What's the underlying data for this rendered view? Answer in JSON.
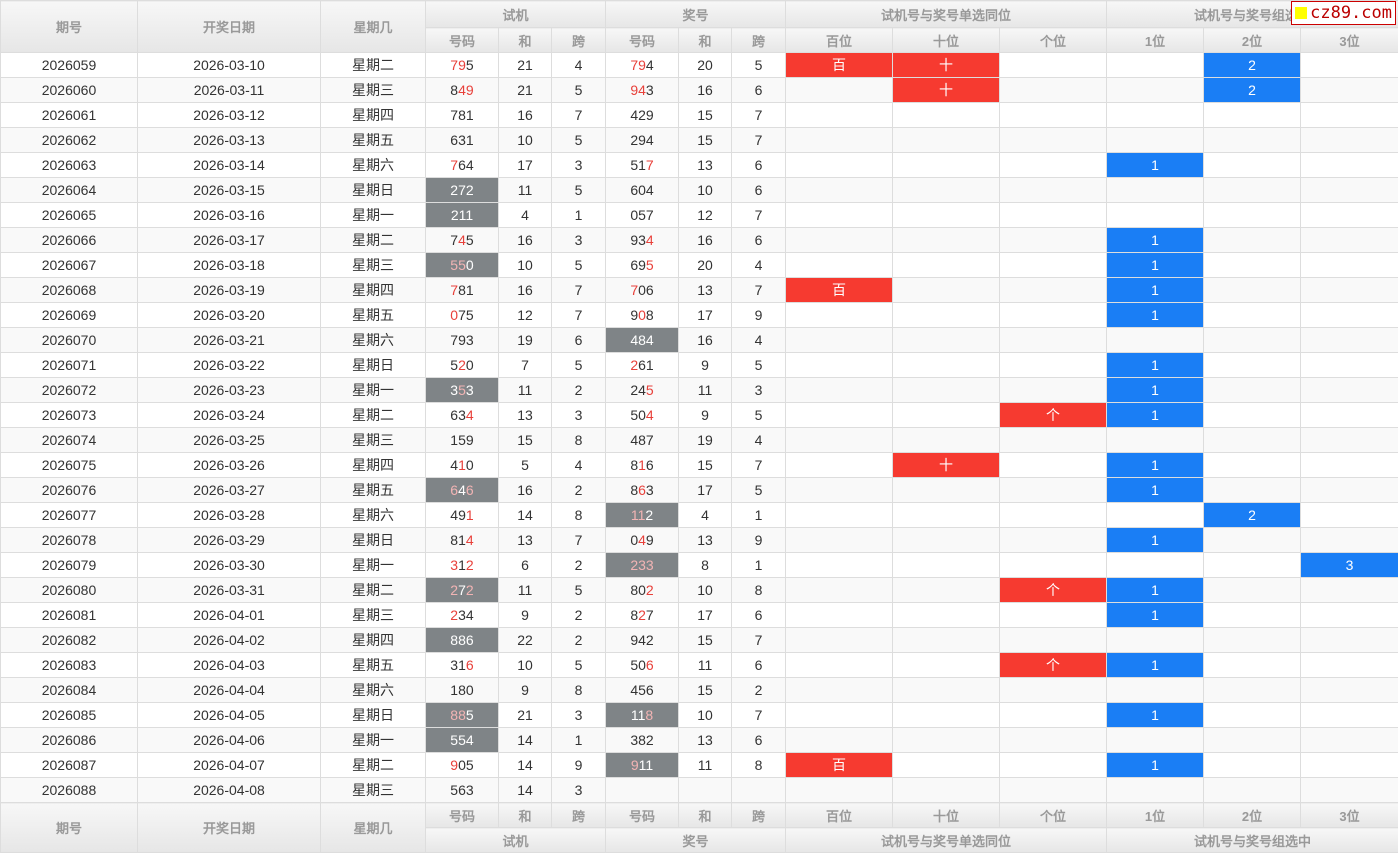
{
  "header": {
    "issue": "期号",
    "date": "开奖日期",
    "weekday": "星期几",
    "trial": "试机",
    "prize": "奖号",
    "single": "试机号与奖号单选同位",
    "group": "试机号与奖号组选中",
    "num": "号码",
    "sum": "和",
    "span": "跨",
    "pos": [
      "百位",
      "十位",
      "个位"
    ],
    "gpos": [
      "1位",
      "2位",
      "3位"
    ]
  },
  "logo": "cz89.com",
  "colors": {
    "red": "#f63a30",
    "blue": "#1a7ef5",
    "gray": "#7f8487"
  },
  "rows": [
    [
      "2026059",
      "2026-03-10",
      "星期二",
      "795",
      "110",
      0,
      "21",
      "4",
      "794",
      "110",
      0,
      "20",
      "5",
      "百",
      "十",
      "",
      "",
      "2",
      ""
    ],
    [
      "2026060",
      "2026-03-11",
      "星期三",
      "849",
      "011",
      0,
      "21",
      "5",
      "943",
      "110",
      0,
      "16",
      "6",
      "",
      "十",
      "",
      "",
      "2",
      ""
    ],
    [
      "2026061",
      "2026-03-12",
      "星期四",
      "781",
      "000",
      0,
      "16",
      "7",
      "429",
      "000",
      0,
      "15",
      "7",
      "",
      "",
      "",
      "",
      "",
      ""
    ],
    [
      "2026062",
      "2026-03-13",
      "星期五",
      "631",
      "000",
      0,
      "10",
      "5",
      "294",
      "000",
      0,
      "15",
      "7",
      "",
      "",
      "",
      "",
      "",
      ""
    ],
    [
      "2026063",
      "2026-03-14",
      "星期六",
      "764",
      "100",
      0,
      "17",
      "3",
      "517",
      "001",
      0,
      "13",
      "6",
      "",
      "",
      "",
      "1",
      "",
      ""
    ],
    [
      "2026064",
      "2026-03-15",
      "星期日",
      "272",
      "000",
      1,
      "11",
      "5",
      "604",
      "000",
      0,
      "10",
      "6",
      "",
      "",
      "",
      "",
      "",
      ""
    ],
    [
      "2026065",
      "2026-03-16",
      "星期一",
      "211",
      "000",
      1,
      "4",
      "1",
      "057",
      "000",
      0,
      "12",
      "7",
      "",
      "",
      "",
      "",
      "",
      ""
    ],
    [
      "2026066",
      "2026-03-17",
      "星期二",
      "745",
      "010",
      0,
      "16",
      "3",
      "934",
      "001",
      0,
      "16",
      "6",
      "",
      "",
      "",
      "1",
      "",
      ""
    ],
    [
      "2026067",
      "2026-03-18",
      "星期三",
      "550",
      "110",
      1,
      "10",
      "5",
      "695",
      "001",
      0,
      "20",
      "4",
      "",
      "",
      "",
      "1",
      "",
      ""
    ],
    [
      "2026068",
      "2026-03-19",
      "星期四",
      "781",
      "100",
      0,
      "16",
      "7",
      "706",
      "100",
      0,
      "13",
      "7",
      "百",
      "",
      "",
      "1",
      "",
      ""
    ],
    [
      "2026069",
      "2026-03-20",
      "星期五",
      "075",
      "100",
      0,
      "12",
      "7",
      "908",
      "010",
      0,
      "17",
      "9",
      "",
      "",
      "",
      "1",
      "",
      ""
    ],
    [
      "2026070",
      "2026-03-21",
      "星期六",
      "793",
      "000",
      0,
      "19",
      "6",
      "484",
      "000",
      1,
      "16",
      "4",
      "",
      "",
      "",
      "",
      "",
      ""
    ],
    [
      "2026071",
      "2026-03-22",
      "星期日",
      "520",
      "010",
      0,
      "7",
      "5",
      "261",
      "100",
      0,
      "9",
      "5",
      "",
      "",
      "",
      "1",
      "",
      ""
    ],
    [
      "2026072",
      "2026-03-23",
      "星期一",
      "353",
      "010",
      1,
      "11",
      "2",
      "245",
      "001",
      0,
      "11",
      "3",
      "",
      "",
      "",
      "1",
      "",
      ""
    ],
    [
      "2026073",
      "2026-03-24",
      "星期二",
      "634",
      "001",
      0,
      "13",
      "3",
      "504",
      "001",
      0,
      "9",
      "5",
      "",
      "",
      "个",
      "1",
      "",
      ""
    ],
    [
      "2026074",
      "2026-03-25",
      "星期三",
      "159",
      "000",
      0,
      "15",
      "8",
      "487",
      "000",
      0,
      "19",
      "4",
      "",
      "",
      "",
      "",
      "",
      ""
    ],
    [
      "2026075",
      "2026-03-26",
      "星期四",
      "410",
      "010",
      0,
      "5",
      "4",
      "816",
      "010",
      0,
      "15",
      "7",
      "",
      "十",
      "",
      "1",
      "",
      ""
    ],
    [
      "2026076",
      "2026-03-27",
      "星期五",
      "646",
      "101",
      1,
      "16",
      "2",
      "863",
      "010",
      0,
      "17",
      "5",
      "",
      "",
      "",
      "1",
      "",
      ""
    ],
    [
      "2026077",
      "2026-03-28",
      "星期六",
      "491",
      "001",
      0,
      "14",
      "8",
      "112",
      "110",
      1,
      "4",
      "1",
      "",
      "",
      "",
      "",
      "2",
      ""
    ],
    [
      "2026078",
      "2026-03-29",
      "星期日",
      "814",
      "001",
      0,
      "13",
      "7",
      "049",
      "010",
      0,
      "13",
      "9",
      "",
      "",
      "",
      "1",
      "",
      ""
    ],
    [
      "2026079",
      "2026-03-30",
      "星期一",
      "312",
      "101",
      0,
      "6",
      "2",
      "233",
      "111",
      1,
      "8",
      "1",
      "",
      "",
      "",
      "",
      "",
      "3"
    ],
    [
      "2026080",
      "2026-03-31",
      "星期二",
      "272",
      "101",
      1,
      "11",
      "5",
      "802",
      "001",
      0,
      "10",
      "8",
      "",
      "",
      "个",
      "1",
      "",
      ""
    ],
    [
      "2026081",
      "2026-04-01",
      "星期三",
      "234",
      "100",
      0,
      "9",
      "2",
      "827",
      "010",
      0,
      "17",
      "6",
      "",
      "",
      "",
      "1",
      "",
      ""
    ],
    [
      "2026082",
      "2026-04-02",
      "星期四",
      "886",
      "000",
      1,
      "22",
      "2",
      "942",
      "000",
      0,
      "15",
      "7",
      "",
      "",
      "",
      "",
      "",
      ""
    ],
    [
      "2026083",
      "2026-04-03",
      "星期五",
      "316",
      "001",
      0,
      "10",
      "5",
      "506",
      "001",
      0,
      "11",
      "6",
      "",
      "",
      "个",
      "1",
      "",
      ""
    ],
    [
      "2026084",
      "2026-04-04",
      "星期六",
      "180",
      "000",
      0,
      "9",
      "8",
      "456",
      "000",
      0,
      "15",
      "2",
      "",
      "",
      "",
      "",
      "",
      ""
    ],
    [
      "2026085",
      "2026-04-05",
      "星期日",
      "885",
      "110",
      1,
      "21",
      "3",
      "118",
      "001",
      1,
      "10",
      "7",
      "",
      "",
      "",
      "1",
      "",
      ""
    ],
    [
      "2026086",
      "2026-04-06",
      "星期一",
      "554",
      "000",
      1,
      "14",
      "1",
      "382",
      "000",
      0,
      "13",
      "6",
      "",
      "",
      "",
      "",
      "",
      ""
    ],
    [
      "2026087",
      "2026-04-07",
      "星期二",
      "905",
      "100",
      0,
      "14",
      "9",
      "911",
      "100",
      1,
      "11",
      "8",
      "百",
      "",
      "",
      "1",
      "",
      ""
    ],
    [
      "2026088",
      "2026-04-08",
      "星期三",
      "563",
      "000",
      0,
      "14",
      "3",
      "",
      "000",
      0,
      "",
      "",
      "",
      "",
      "",
      "",
      "",
      ""
    ]
  ]
}
